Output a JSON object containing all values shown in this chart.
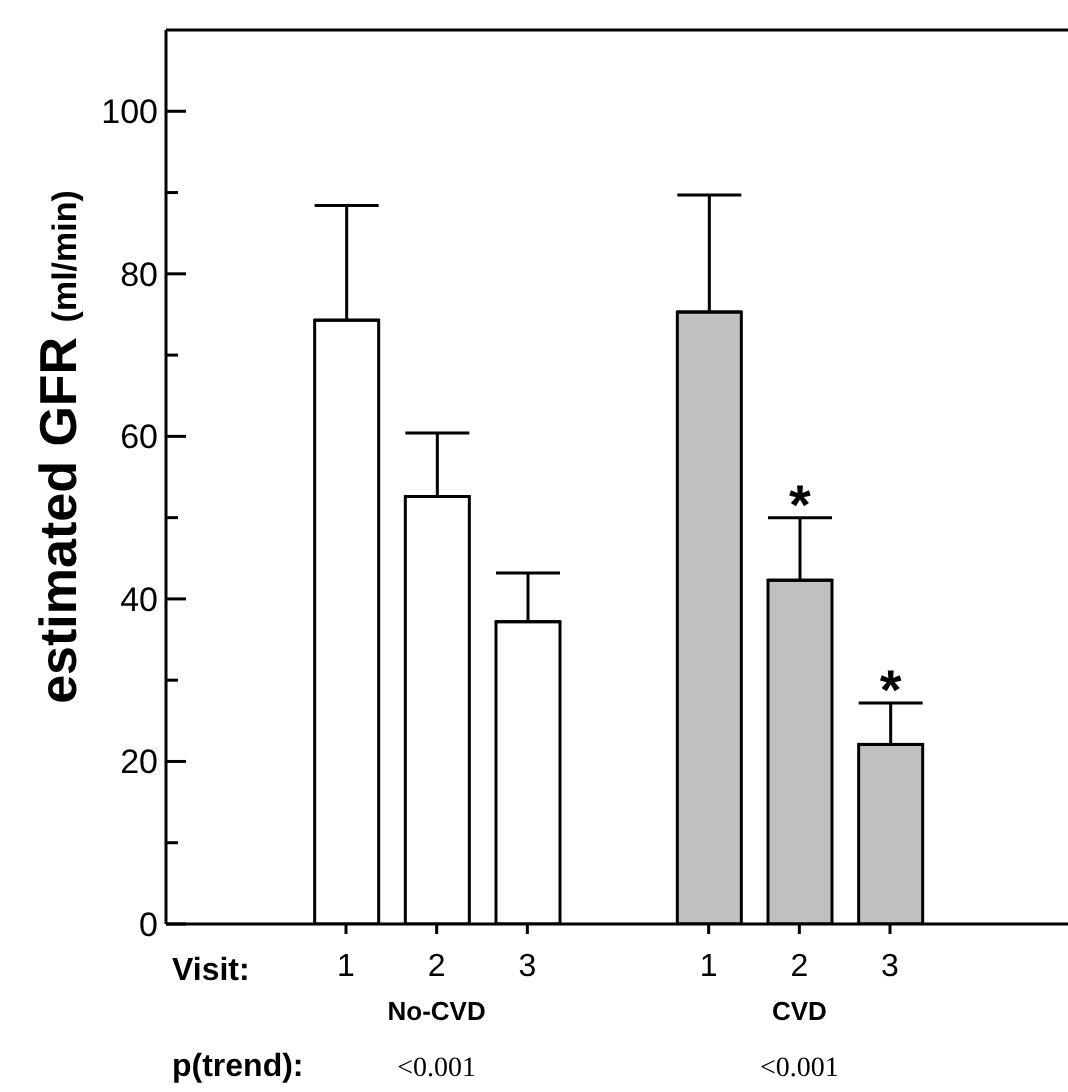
{
  "chart_data": {
    "type": "bar",
    "ylabel": "estimated GFR  (ml/min)",
    "categories": [
      null,
      "1",
      "2",
      "3",
      null,
      "1",
      "2",
      "3",
      null
    ],
    "values": [
      null,
      74.3,
      52.6,
      37.2,
      null,
      75.3,
      42.3,
      22.1,
      null
    ],
    "colors": [
      "#ffffff",
      "#ffffff",
      "#ffffff",
      "#ffffff",
      "#c0c0c0",
      "#c0c0c0",
      "#c0c0c0",
      "#c0c0c0",
      "#c0c0c0"
    ],
    "errors": [
      null,
      14.1,
      7.8,
      6.0,
      null,
      14.4,
      7.7,
      5.1,
      null
    ],
    "ylim": [
      0,
      110
    ],
    "yticks": [
      0,
      {
        "value": 10,
        "label": null
      },
      20,
      {
        "value": 30,
        "label": null
      },
      40,
      {
        "value": 50,
        "label": null
      },
      60,
      {
        "value": 70,
        "label": null
      },
      80,
      {
        "value": 90,
        "label": null
      },
      100
    ],
    "value_labels": [
      null,
      null,
      null,
      null,
      null,
      null,
      "*",
      "*",
      null
    ],
    "annotations": [
      "Visit:",
      "No-CVD",
      "CVD",
      "p(trend):",
      "<0.001",
      "<0.001"
    ],
    "grid": false,
    "legend": false
  }
}
